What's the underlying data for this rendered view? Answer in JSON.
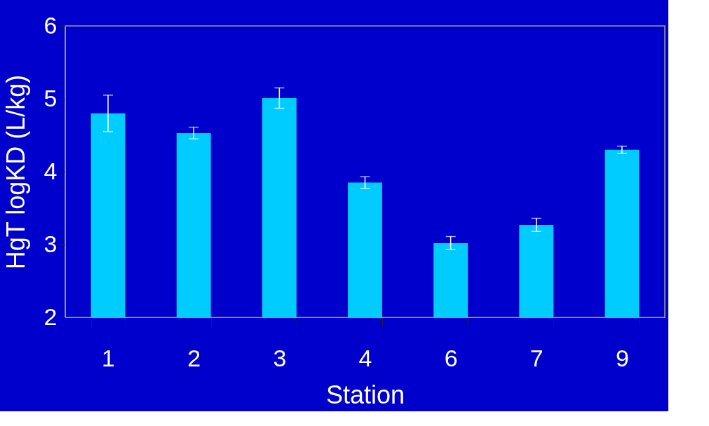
{
  "chart_data": {
    "type": "bar",
    "xlabel": "Station",
    "ylabel": "HgT logKD (L/kg)",
    "categories": [
      "1",
      "2",
      "3",
      "4",
      "6",
      "7",
      "9"
    ],
    "values": [
      4.8,
      4.53,
      5.01,
      3.85,
      3.02,
      3.27,
      4.3
    ],
    "errors": [
      0.25,
      0.08,
      0.14,
      0.08,
      0.09,
      0.09,
      0.05
    ],
    "color": "#00ccff",
    "ylim": [
      2,
      6
    ],
    "yticks": [
      2,
      3,
      4,
      5,
      6
    ],
    "grid": false
  }
}
